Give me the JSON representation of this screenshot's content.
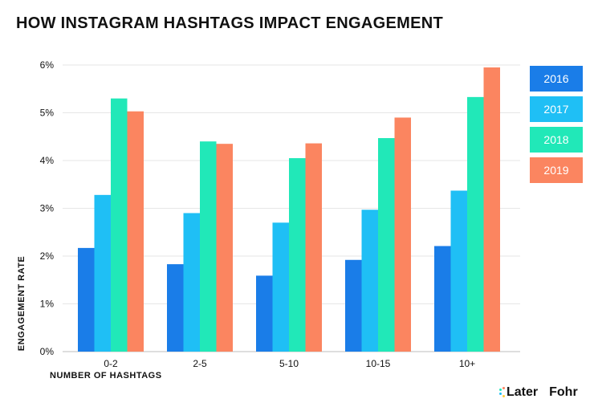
{
  "title": "HOW INSTAGRAM HASHTAGS IMPACT ENGAGEMENT",
  "logos": {
    "later": "Later",
    "fohr": "Fohr"
  },
  "chart_data": {
    "type": "bar",
    "title": "HOW INSTAGRAM HASHTAGS IMPACT ENGAGEMENT",
    "xlabel": "NUMBER OF HASHTAGS",
    "ylabel": "ENGAGEMENT RATE",
    "categories": [
      "0-2",
      "2-5",
      "5-10",
      "10-15",
      "10+"
    ],
    "ylim": [
      0,
      6
    ],
    "yticks": [
      "0%",
      "1%",
      "2%",
      "3%",
      "4%",
      "5%",
      "6%"
    ],
    "grid": true,
    "legend_position": "right",
    "series": [
      {
        "name": "2016",
        "color": "#1a7de8",
        "values": [
          2.17,
          1.83,
          1.59,
          1.92,
          2.21
        ]
      },
      {
        "name": "2017",
        "color": "#1fbff5",
        "values": [
          3.28,
          2.9,
          2.7,
          2.97,
          3.37
        ]
      },
      {
        "name": "2018",
        "color": "#21e8b8",
        "values": [
          5.3,
          4.4,
          4.05,
          4.47,
          5.33
        ]
      },
      {
        "name": "2019",
        "color": "#fb8560",
        "values": [
          5.03,
          4.35,
          4.36,
          4.9,
          5.95
        ]
      }
    ]
  }
}
